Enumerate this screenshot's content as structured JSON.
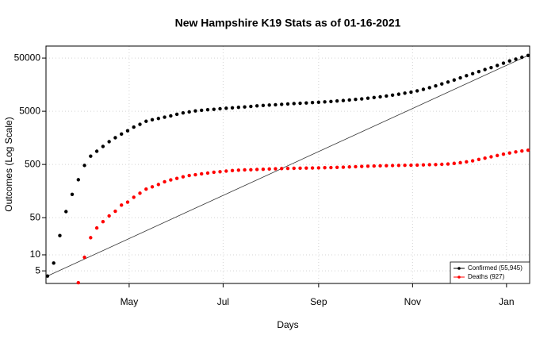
{
  "chart_data": {
    "type": "scatter",
    "title": "New Hampshire K19 Stats as of 01-16-2021",
    "xlabel": "Days",
    "ylabel": "Outcomes (Log Scale)",
    "log_y": true,
    "grid": true,
    "legend_position": "bottomright",
    "xlim": [
      67,
      381
    ],
    "ylim": [
      2.9,
      84000
    ],
    "xticks": [
      {
        "value": 121,
        "label": "May"
      },
      {
        "value": 182,
        "label": "Jul"
      },
      {
        "value": 244,
        "label": "Sep"
      },
      {
        "value": 305,
        "label": "Nov"
      },
      {
        "value": 366,
        "label": "Jan"
      }
    ],
    "yticks": [
      5,
      10,
      50,
      500,
      5000,
      50000
    ],
    "x": [
      68,
      72,
      76,
      80,
      84,
      88,
      92,
      96,
      100,
      104,
      108,
      112,
      116,
      120,
      124,
      128,
      132,
      136,
      140,
      144,
      148,
      152,
      156,
      160,
      164,
      168,
      172,
      176,
      180,
      184,
      188,
      192,
      196,
      200,
      204,
      208,
      212,
      216,
      220,
      224,
      228,
      232,
      236,
      240,
      244,
      248,
      252,
      256,
      260,
      264,
      268,
      272,
      276,
      280,
      284,
      288,
      292,
      296,
      300,
      304,
      308,
      312,
      316,
      320,
      324,
      328,
      332,
      336,
      340,
      344,
      348,
      352,
      356,
      360,
      364,
      368,
      372,
      376,
      380
    ],
    "series": [
      {
        "name": "Confirmed (55,945)",
        "color": "#000000",
        "values": [
          4,
          7,
          23,
          65,
          137,
          258,
          479,
          715,
          885,
          1091,
          1342,
          1588,
          1864,
          2146,
          2518,
          2843,
          3239,
          3464,
          3652,
          3868,
          4089,
          4386,
          4651,
          4854,
          5069,
          5209,
          5345,
          5436,
          5571,
          5699,
          5802,
          5914,
          6015,
          6165,
          6318,
          6436,
          6544,
          6626,
          6741,
          6861,
          6969,
          7063,
          7159,
          7270,
          7384,
          7505,
          7640,
          7802,
          7946,
          8138,
          8337,
          8542,
          8783,
          9066,
          9345,
          9674,
          10032,
          10457,
          10949,
          11438,
          12089,
          12907,
          13853,
          14974,
          16289,
          17716,
          19329,
          21227,
          23279,
          25418,
          27810,
          30380,
          33027,
          36208,
          40062,
          44114,
          47800,
          51700,
          55945
        ]
      },
      {
        "name": "Deaths (927)",
        "color": "#ff0000",
        "values": [
          null,
          null,
          null,
          null,
          null,
          3,
          9,
          21,
          32,
          42,
          54,
          66,
          86,
          98,
          121,
          144,
          172,
          190,
          210,
          236,
          256,
          273,
          293,
          310,
          320,
          333,
          344,
          357,
          365,
          375,
          384,
          391,
          395,
          398,
          402,
          406,
          411,
          415,
          419,
          421,
          423,
          425,
          428,
          429,
          431,
          434,
          437,
          441,
          444,
          449,
          454,
          459,
          463,
          467,
          471,
          474,
          477,
          480,
          482,
          484,
          487,
          490,
          494,
          497,
          502,
          509,
          524,
          540,
          560,
          585,
          620,
          657,
          696,
          736,
          781,
          820,
          860,
          895,
          927
        ]
      }
    ]
  }
}
